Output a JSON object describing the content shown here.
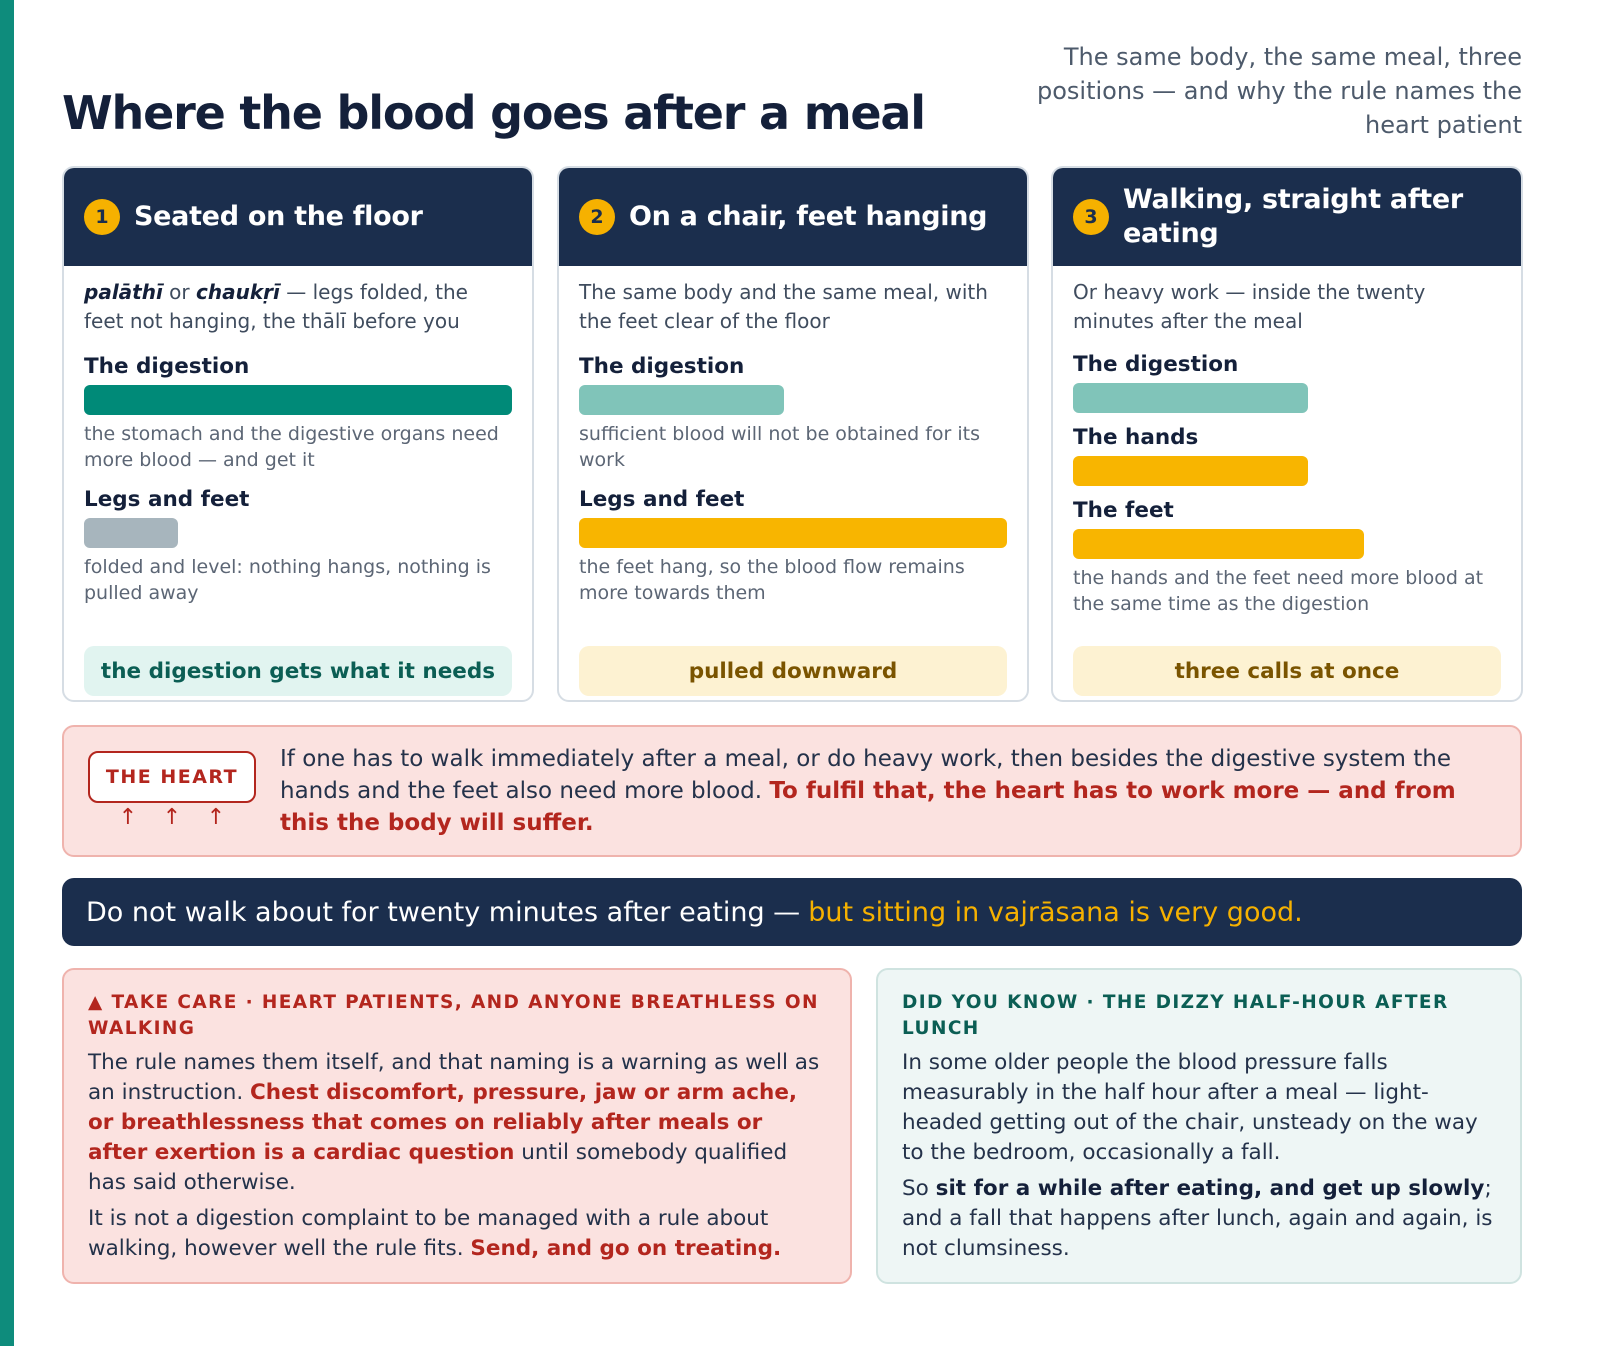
{
  "header": {
    "title": "Where the blood goes after a meal",
    "subtitle": "The same body, the same meal, three positions — and why the rule names the heart patient"
  },
  "cards": [
    {
      "number": "1",
      "title": "Seated on the floor",
      "intro_term1": "palāthī",
      "intro_or": " or ",
      "intro_term2": "chaukṛī",
      "intro_rest": " — legs folded, the feet not hanging, the thālī before you",
      "bars": [
        {
          "label": "The digestion",
          "level": 1.0,
          "color": "#008a78",
          "note": "the stomach and the digestive organs need more blood — and get it"
        },
        {
          "label": "Legs and feet",
          "level": 0.22,
          "color": "#a7b5bd",
          "note": "folded and level: nothing hangs, nothing is pulled away"
        }
      ],
      "verdict": "the digestion gets what it needs",
      "verdict_bg": "#e1f4f0",
      "verdict_color": "#0b5e54"
    },
    {
      "number": "2",
      "title": "On a chair, feet hanging",
      "intro": "The same body and the same meal, with the feet clear of the floor",
      "bars": [
        {
          "label": "The digestion",
          "level": 0.48,
          "color": "#80c4b9",
          "note": "sufficient blood will not be obtained for its work"
        },
        {
          "label": "Legs and feet",
          "level": 1.0,
          "color": "#f8b500",
          "note": "the feet hang, so the blood flow remains more towards them"
        }
      ],
      "verdict": "pulled downward",
      "verdict_bg": "#fdf2d2",
      "verdict_color": "#7a5400"
    },
    {
      "number": "3",
      "title": "Walking, straight after eating",
      "intro": "Or heavy work — inside the twenty minutes after the meal",
      "bars": [
        {
          "label": "The digestion",
          "level": 0.55,
          "color": "#80c4b9"
        },
        {
          "label": "The hands",
          "level": 0.55,
          "color": "#f8b500"
        },
        {
          "label": "The feet",
          "level": 0.68,
          "color": "#f8b500",
          "note": "the hands and the feet need more blood at the same time as the digestion"
        }
      ],
      "verdict": "three calls at once",
      "verdict_bg": "#fdf2d2",
      "verdict_color": "#7a5400"
    }
  ],
  "heart": {
    "badge": "THE HEART",
    "arrow": "↑",
    "text_plain": "If one has to walk immediately after a meal, or do heavy work, then besides the digestive system the hands and the feet also need more blood. ",
    "text_emph": "To fulfil that, the heart has to work more — and from this the body will suffer."
  },
  "rule": {
    "plain": "Do not walk about for twenty minutes after eating —",
    "gold": "but sitting in vajrāsana is very good."
  },
  "care": {
    "heading": "▲ TAKE CARE · HEART PATIENTS, AND ANYONE BREATHLESS ON WALKING",
    "p1_a": "The rule names them itself, and that naming is a warning as well as an instruction. ",
    "p1_red": "Chest discomfort, pressure, jaw or arm ache, or breathlessness that comes on reliably after meals or after exertion is a cardiac question",
    "p1_b": " until somebody qualified has said otherwise.",
    "p2_a": "It is not a digestion complaint to be managed with a rule about walking, however well the rule fits. ",
    "p2_red": "Send, and go on treating."
  },
  "know": {
    "heading": "DID YOU KNOW · THE DIZZY HALF-HOUR AFTER LUNCH",
    "p1": "In some older people the blood pressure falls measurably in the half hour after a meal — light-headed getting out of the chair, unsteady on the way to the bedroom, occasionally a fall.",
    "p2_a": "So ",
    "p2_bold": "sit for a while after eating, and get up slowly",
    "p2_b": "; and a fall that happens after lunch, again and again, is not clumsiness."
  }
}
